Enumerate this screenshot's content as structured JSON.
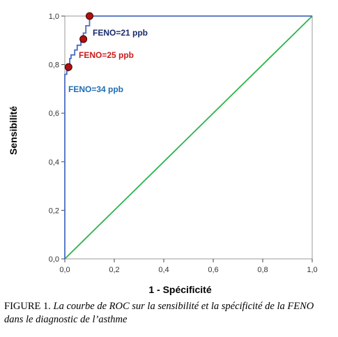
{
  "chart_data": {
    "type": "line",
    "xlabel": "1 - Spécificité",
    "ylabel": "Sensibilité",
    "xlim": [
      0,
      1
    ],
    "ylim": [
      0,
      1
    ],
    "xticks": [
      "0,0",
      "0,2",
      "0,4",
      "0,6",
      "0,8",
      "1,0"
    ],
    "yticks": [
      "0,0",
      "0,2",
      "0,4",
      "0,6",
      "0,8",
      "1,0"
    ],
    "grid": false,
    "series": [
      {
        "color": "#4a6bc0",
        "x": [
          0.0,
          0.0,
          0.0,
          0.0,
          0.008,
          0.008,
          0.015,
          0.015,
          0.02,
          0.02,
          0.025,
          0.025,
          0.04,
          0.04,
          0.05,
          0.05,
          0.065,
          0.065,
          0.075,
          0.075,
          0.085,
          0.085,
          0.1,
          0.1,
          1.0
        ],
        "y": [
          0.0,
          0.66,
          0.68,
          0.76,
          0.76,
          0.775,
          0.775,
          0.79,
          0.79,
          0.825,
          0.825,
          0.84,
          0.84,
          0.86,
          0.86,
          0.88,
          0.88,
          0.905,
          0.905,
          0.93,
          0.93,
          0.96,
          0.96,
          1.0,
          1.0
        ]
      },
      {
        "color": "#2db34a",
        "x": [
          0,
          1
        ],
        "y": [
          0,
          1
        ]
      }
    ],
    "points": [
      {
        "label": "FENO=34 ppb",
        "x": 0.015,
        "y": 0.79,
        "label_color": "#1e6db3"
      },
      {
        "label": "FENO=25 ppb",
        "x": 0.075,
        "y": 0.905,
        "label_color": "#cc1a1a"
      },
      {
        "label": "FENO=21 ppb",
        "x": 0.1,
        "y": 1.0,
        "label_color": "#1a2a6c"
      }
    ],
    "point_color": "#b01010"
  },
  "caption": {
    "label": "FIGURE 1.",
    "text": "La courbe de ROC sur la sensibilité et la spécificité de la FENO dans le diagnostic de l’asthme"
  }
}
